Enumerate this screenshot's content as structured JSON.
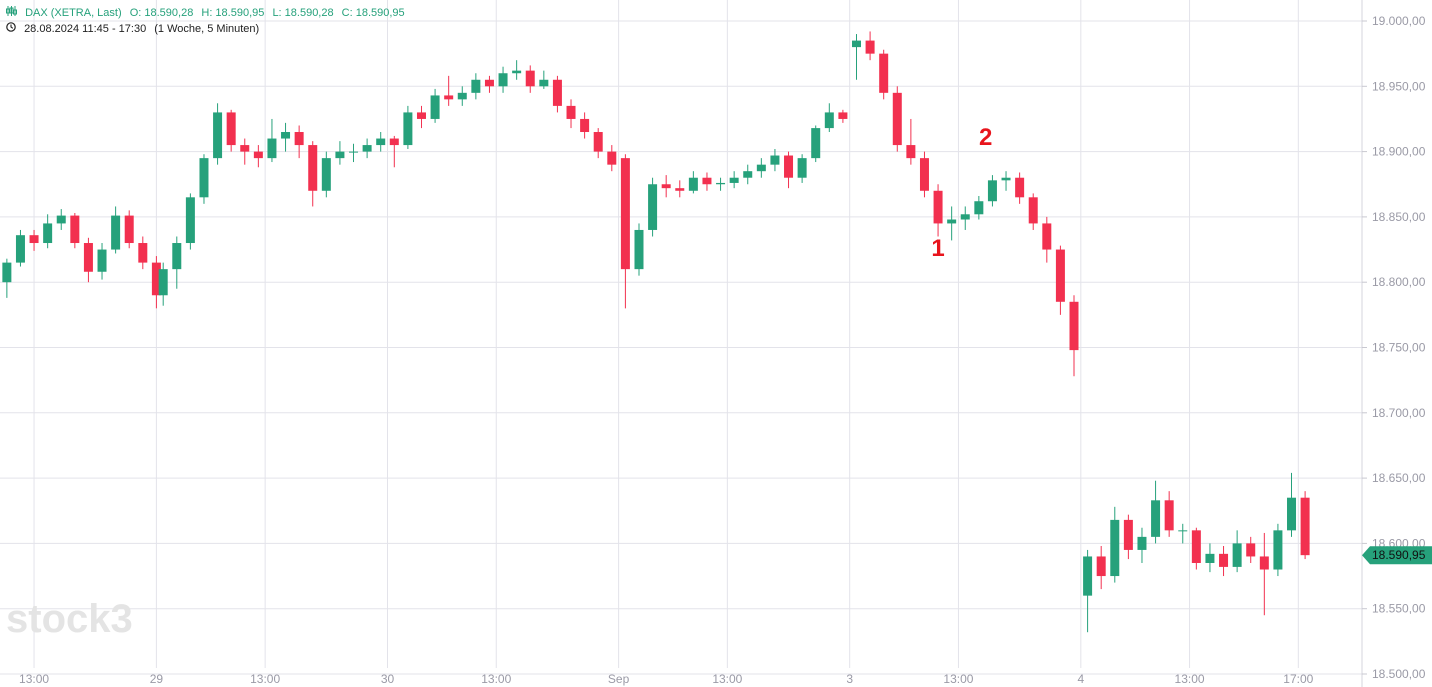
{
  "header": {
    "instrument": "DAX (XETRA, Last)",
    "open": "O: 18.590,28",
    "high": "H: 18.590,95",
    "low": "L: 18.590,28",
    "close": "C: 18.590,95",
    "range": "28.08.2024 11:45 - 17:30",
    "period": "(1 Woche, 5 Minuten)",
    "icons": {
      "chart_type": "candlestick-icon",
      "time": "clock-icon"
    }
  },
  "watermark": "stock3",
  "colors": {
    "up": "#26a17b",
    "down": "#f2304f",
    "header": "#26a17b",
    "grid": "#e3e3ea",
    "annotation": "#e8141c"
  },
  "chart_data": {
    "type": "candlestick",
    "title": "DAX (XETRA, Last)",
    "ylim": [
      18500,
      19000
    ],
    "yticks": [
      "18.500,00",
      "18.550,00",
      "18.600,00",
      "18.650,00",
      "18.700,00",
      "18.750,00",
      "18.800,00",
      "18.850,00",
      "18.900,00",
      "18.950,00",
      "19.000,00"
    ],
    "ytick_values": [
      18500,
      18550,
      18600,
      18650,
      18700,
      18750,
      18800,
      18850,
      18900,
      18950,
      19000
    ],
    "last_price": 18590.95,
    "last_price_label": "18.590,95",
    "grid": true,
    "xticks": [
      {
        "label": "13:00",
        "day": 0,
        "time": "13:00"
      },
      {
        "label": "29",
        "day": 1,
        "time": "09:00"
      },
      {
        "label": "13:00",
        "day": 1,
        "time": "13:00"
      },
      {
        "label": "30",
        "day": 2,
        "time": "09:00"
      },
      {
        "label": "13:00",
        "day": 2,
        "time": "13:00"
      },
      {
        "label": "Sep",
        "day": 3,
        "time": "09:00"
      },
      {
        "label": "13:00",
        "day": 3,
        "time": "13:00"
      },
      {
        "label": "3",
        "day": 4,
        "time": "09:00"
      },
      {
        "label": "13:00",
        "day": 4,
        "time": "13:00"
      },
      {
        "label": "4",
        "day": 5,
        "time": "09:00"
      },
      {
        "label": "13:00",
        "day": 5,
        "time": "13:00"
      },
      {
        "label": "17:00",
        "day": 5,
        "time": "17:00"
      }
    ],
    "annotations": [
      {
        "label": "1",
        "day": 4,
        "time": "12:15",
        "price": 18820
      },
      {
        "label": "2",
        "day": 4,
        "time": "14:00",
        "price": 18905
      }
    ],
    "sessions": [
      {
        "date": "28.08.2024",
        "start": "11:45",
        "ohlc": [
          [
            18800,
            18818,
            18788,
            18815
          ],
          [
            18815,
            18840,
            18812,
            18836
          ],
          [
            18836,
            18840,
            18824,
            18830
          ],
          [
            18830,
            18852,
            18826,
            18845
          ],
          [
            18845,
            18856,
            18840,
            18851
          ],
          [
            18851,
            18853,
            18826,
            18830
          ],
          [
            18830,
            18834,
            18800,
            18808
          ],
          [
            18808,
            18830,
            18802,
            18825
          ],
          [
            18825,
            18858,
            18822,
            18851
          ],
          [
            18851,
            18855,
            18826,
            18830
          ],
          [
            18830,
            18835,
            18810,
            18815
          ],
          [
            18815,
            18820,
            18780,
            18790
          ]
        ]
      },
      {
        "date": "29.08.2024",
        "start": "09:00",
        "ohlc": [
          [
            18790,
            18815,
            18782,
            18810
          ],
          [
            18810,
            18835,
            18795,
            18830
          ],
          [
            18830,
            18868,
            18825,
            18865
          ],
          [
            18865,
            18898,
            18860,
            18895
          ],
          [
            18895,
            18937,
            18890,
            18930
          ],
          [
            18930,
            18932,
            18900,
            18905
          ],
          [
            18905,
            18910,
            18890,
            18900
          ],
          [
            18900,
            18905,
            18888,
            18895
          ],
          [
            18895,
            18925,
            18892,
            18910
          ],
          [
            18910,
            18922,
            18900,
            18915
          ],
          [
            18915,
            18920,
            18895,
            18905
          ],
          [
            18905,
            18908,
            18858,
            18870
          ],
          [
            18870,
            18900,
            18865,
            18895
          ],
          [
            18895,
            18908,
            18890,
            18900
          ],
          [
            18900,
            18906,
            18892,
            18900
          ],
          [
            18900,
            18910,
            18895,
            18905
          ],
          [
            18905,
            18915,
            18900,
            18910
          ]
        ]
      },
      {
        "date": "30.08.2024",
        "start": "09:00",
        "ohlc": [
          [
            18910,
            18912,
            18888,
            18905
          ],
          [
            18905,
            18935,
            18902,
            18930
          ],
          [
            18930,
            18935,
            18918,
            18925
          ],
          [
            18925,
            18948,
            18922,
            18943
          ],
          [
            18943,
            18958,
            18935,
            18940
          ],
          [
            18940,
            18950,
            18935,
            18945
          ],
          [
            18945,
            18960,
            18940,
            18955
          ],
          [
            18955,
            18958,
            18945,
            18950
          ],
          [
            18950,
            18965,
            18945,
            18960
          ],
          [
            18960,
            18970,
            18955,
            18962
          ],
          [
            18962,
            18966,
            18945,
            18950
          ],
          [
            18950,
            18962,
            18948,
            18955
          ],
          [
            18955,
            18958,
            18930,
            18935
          ],
          [
            18935,
            18940,
            18918,
            18925
          ],
          [
            18925,
            18930,
            18910,
            18915
          ],
          [
            18915,
            18918,
            18895,
            18900
          ],
          [
            18900,
            18905,
            18885,
            18890
          ]
        ]
      },
      {
        "date": "02.09.2024",
        "start": "09:00",
        "ohlc": [
          [
            18895,
            18898,
            18780,
            18810
          ],
          [
            18810,
            18845,
            18805,
            18840
          ],
          [
            18840,
            18880,
            18835,
            18875
          ],
          [
            18875,
            18882,
            18865,
            18872
          ],
          [
            18872,
            18878,
            18865,
            18870
          ],
          [
            18870,
            18885,
            18868,
            18880
          ],
          [
            18880,
            18884,
            18870,
            18875
          ],
          [
            18875,
            18880,
            18870,
            18876
          ],
          [
            18876,
            18885,
            18872,
            18880
          ],
          [
            18880,
            18890,
            18875,
            18885
          ],
          [
            18885,
            18895,
            18880,
            18890
          ],
          [
            18890,
            18902,
            18885,
            18897
          ],
          [
            18897,
            18900,
            18872,
            18880
          ],
          [
            18880,
            18898,
            18876,
            18895
          ],
          [
            18895,
            18920,
            18892,
            18918
          ],
          [
            18918,
            18937,
            18915,
            18930
          ],
          [
            18930,
            18932,
            18922,
            18925
          ]
        ]
      },
      {
        "date": "03.09.2024",
        "start": "09:00",
        "ohlc": [
          [
            18980,
            18990,
            18955,
            18985
          ],
          [
            18985,
            18992,
            18970,
            18975
          ],
          [
            18975,
            18978,
            18940,
            18945
          ],
          [
            18945,
            18950,
            18900,
            18905
          ],
          [
            18905,
            18925,
            18890,
            18895
          ],
          [
            18895,
            18900,
            18865,
            18870
          ],
          [
            18870,
            18875,
            18835,
            18845
          ],
          [
            18845,
            18858,
            18832,
            18848
          ],
          [
            18848,
            18858,
            18840,
            18852
          ],
          [
            18852,
            18866,
            18848,
            18862
          ],
          [
            18862,
            18882,
            18858,
            18878
          ],
          [
            18878,
            18885,
            18870,
            18880
          ],
          [
            18880,
            18884,
            18860,
            18865
          ],
          [
            18865,
            18868,
            18840,
            18845
          ],
          [
            18845,
            18850,
            18815,
            18825
          ],
          [
            18825,
            18828,
            18775,
            18785
          ],
          [
            18785,
            18790,
            18728,
            18748
          ]
        ]
      },
      {
        "date": "04.09.2024",
        "start": "09:00",
        "ohlc": [
          [
            18560,
            18595,
            18532,
            18590
          ],
          [
            18590,
            18598,
            18565,
            18575
          ],
          [
            18575,
            18628,
            18570,
            18618
          ],
          [
            18618,
            18622,
            18588,
            18595
          ],
          [
            18595,
            18612,
            18585,
            18605
          ],
          [
            18605,
            18648,
            18600,
            18633
          ],
          [
            18633,
            18640,
            18605,
            18610
          ],
          [
            18610,
            18615,
            18600,
            18610
          ],
          [
            18610,
            18612,
            18580,
            18585
          ],
          [
            18585,
            18600,
            18578,
            18592
          ],
          [
            18592,
            18598,
            18575,
            18582
          ],
          [
            18582,
            18610,
            18578,
            18600
          ],
          [
            18600,
            18605,
            18585,
            18590
          ],
          [
            18590,
            18608,
            18545,
            18580
          ],
          [
            18580,
            18615,
            18575,
            18610
          ],
          [
            18610,
            18654,
            18605,
            18635
          ],
          [
            18635,
            18640,
            18588,
            18591
          ]
        ]
      }
    ]
  }
}
